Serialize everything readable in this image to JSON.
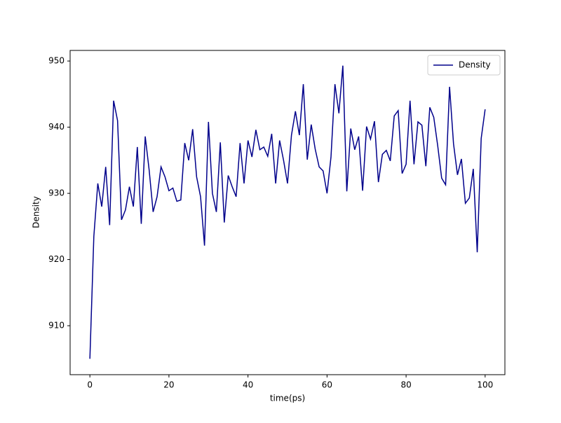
{
  "chart_data": {
    "type": "line",
    "xlabel": "time(ps)",
    "ylabel": "Density",
    "x": [
      0,
      1,
      2,
      3,
      4,
      5,
      6,
      7,
      8,
      9,
      10,
      11,
      12,
      13,
      14,
      15,
      16,
      17,
      18,
      19,
      20,
      21,
      22,
      23,
      24,
      25,
      26,
      27,
      28,
      29,
      30,
      31,
      32,
      33,
      34,
      35,
      36,
      37,
      38,
      39,
      40,
      41,
      42,
      43,
      44,
      45,
      46,
      47,
      48,
      49,
      50,
      51,
      52,
      53,
      54,
      55,
      56,
      57,
      58,
      59,
      60,
      61,
      62,
      63,
      64,
      65,
      66,
      67,
      68,
      69,
      70,
      71,
      72,
      73,
      74,
      75,
      76,
      77,
      78,
      79,
      80,
      81,
      82,
      83,
      84,
      85,
      86,
      87,
      88,
      89,
      90,
      91,
      92,
      93,
      94,
      95,
      96,
      97,
      98,
      99,
      100
    ],
    "series": [
      {
        "name": "Density",
        "color": "#00008b",
        "values": [
          905,
          923.5,
          931.5,
          928,
          934,
          925.2,
          944,
          941,
          926,
          927.5,
          931,
          928,
          937,
          925.4,
          938.6,
          933.5,
          927.2,
          929.5,
          934,
          932.5,
          930.4,
          930.8,
          928.8,
          929,
          937.6,
          935,
          939.7,
          932.5,
          929.5,
          922.1,
          940.8,
          930,
          927.2,
          937.7,
          925.6,
          932.7,
          931,
          929.5,
          937.6,
          931.5,
          938,
          935.5,
          939.6,
          936.6,
          937,
          935.6,
          939,
          931.5,
          938,
          935,
          931.5,
          938.8,
          942.4,
          938.8,
          946.5,
          935.1,
          940.4,
          936.7,
          934,
          933.4,
          930,
          935.5,
          946.5,
          942.1,
          949.3,
          930.3,
          939.8,
          936.6,
          938.6,
          930.4,
          940.1,
          938.2,
          940.9,
          931.7,
          935.9,
          936.5,
          934.9,
          941.7,
          942.5,
          933,
          934.4,
          944,
          934.4,
          940.8,
          940.3,
          934.1,
          943,
          941.5,
          937.2,
          932.3,
          931.3,
          946.1,
          937.5,
          932.8,
          935.2,
          928.5,
          929.3,
          933.7,
          921.1,
          938.3,
          942.7
        ]
      }
    ],
    "xlim": [
      -5,
      105
    ],
    "ylim": [
      902.6,
      951.6
    ],
    "xticks": [
      0,
      20,
      40,
      60,
      80,
      100
    ],
    "yticks": [
      910,
      920,
      930,
      940,
      950
    ],
    "legend": "upper right"
  }
}
